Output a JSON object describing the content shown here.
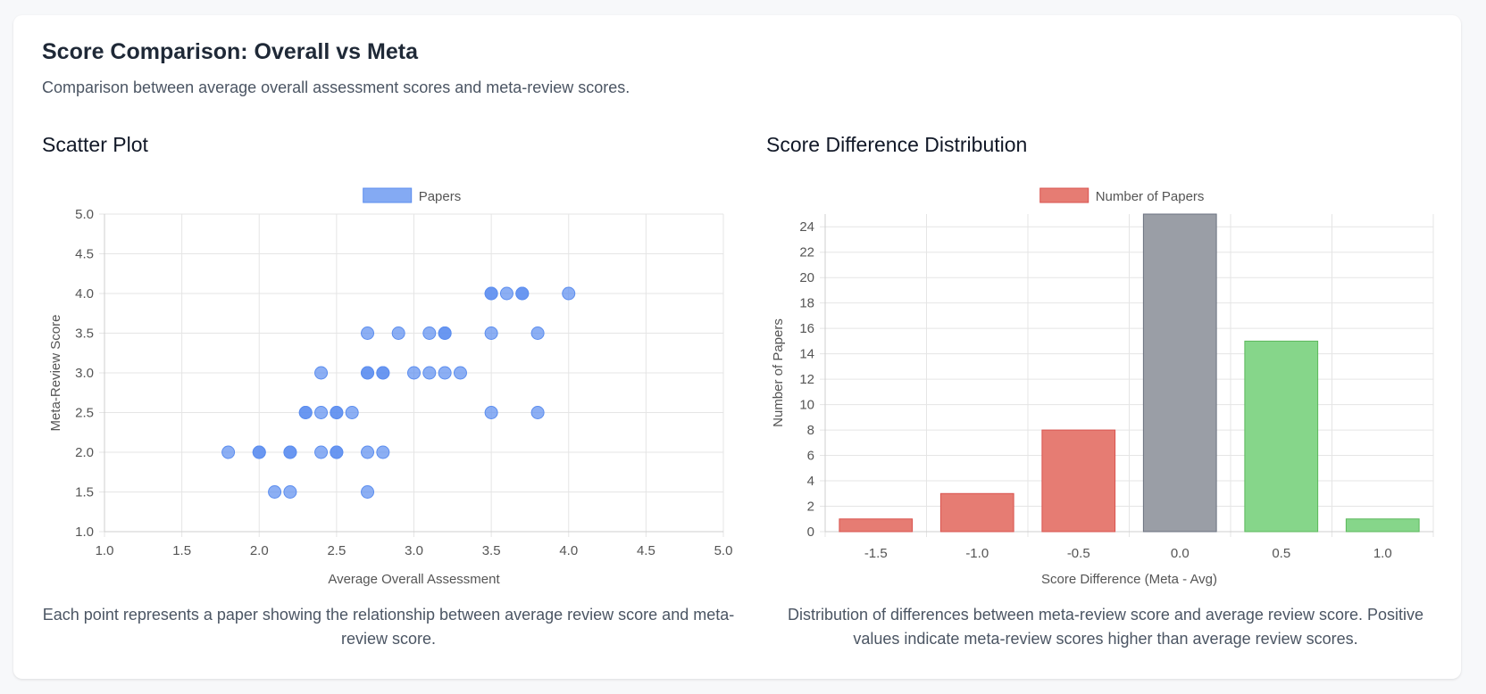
{
  "header": {
    "title": "Score Comparison: Overall vs Meta",
    "subtitle": "Comparison between average overall assessment scores and meta-review scores."
  },
  "scatter_panel": {
    "title": "Scatter Plot",
    "caption": "Each point represents a paper showing the relationship between average review score and meta-review score."
  },
  "bar_panel": {
    "title": "Score Difference Distribution",
    "caption": "Distribution of differences between meta-review score and average review score. Positive values indicate meta-review scores higher than average review scores."
  },
  "chart_data": [
    {
      "type": "scatter",
      "legend": [
        "Papers"
      ],
      "legend_position": "top",
      "xlabel": "Average Overall Assessment",
      "ylabel": "Meta-Review Score",
      "xlim": [
        1.0,
        5.0
      ],
      "ylim": [
        1.0,
        5.0
      ],
      "x_ticks": [
        "1.0",
        "1.5",
        "2.0",
        "2.5",
        "3.0",
        "3.5",
        "4.0",
        "4.5",
        "5.0"
      ],
      "y_ticks": [
        "1.0",
        "1.5",
        "2.0",
        "2.5",
        "3.0",
        "3.5",
        "4.0",
        "4.5",
        "5.0"
      ],
      "grid": true,
      "color": "#5b8def",
      "series": [
        {
          "name": "Papers",
          "points": [
            [
              1.8,
              2.0
            ],
            [
              2.0,
              2.0
            ],
            [
              2.0,
              2.0
            ],
            [
              2.2,
              2.0
            ],
            [
              2.2,
              2.0
            ],
            [
              2.4,
              2.0
            ],
            [
              2.5,
              2.0
            ],
            [
              2.5,
              2.0
            ],
            [
              2.7,
              2.0
            ],
            [
              2.8,
              2.0
            ],
            [
              2.1,
              1.5
            ],
            [
              2.2,
              1.5
            ],
            [
              2.7,
              1.5
            ],
            [
              2.3,
              2.5
            ],
            [
              2.3,
              2.5
            ],
            [
              2.4,
              2.5
            ],
            [
              2.5,
              2.5
            ],
            [
              2.5,
              2.5
            ],
            [
              2.6,
              2.5
            ],
            [
              3.5,
              2.5
            ],
            [
              3.8,
              2.5
            ],
            [
              2.4,
              3.0
            ],
            [
              2.7,
              3.0
            ],
            [
              2.7,
              3.0
            ],
            [
              2.8,
              3.0
            ],
            [
              2.8,
              3.0
            ],
            [
              3.0,
              3.0
            ],
            [
              3.1,
              3.0
            ],
            [
              3.2,
              3.0
            ],
            [
              3.3,
              3.0
            ],
            [
              2.7,
              3.5
            ],
            [
              2.9,
              3.5
            ],
            [
              3.1,
              3.5
            ],
            [
              3.2,
              3.5
            ],
            [
              3.2,
              3.5
            ],
            [
              3.5,
              3.5
            ],
            [
              3.8,
              3.5
            ],
            [
              3.5,
              4.0
            ],
            [
              3.5,
              4.0
            ],
            [
              3.6,
              4.0
            ],
            [
              3.7,
              4.0
            ],
            [
              3.7,
              4.0
            ],
            [
              4.0,
              4.0
            ]
          ]
        }
      ]
    },
    {
      "type": "bar",
      "legend": [
        "Number of Papers"
      ],
      "legend_position": "top",
      "xlabel": "Score Difference (Meta - Avg)",
      "ylabel": "Number of Papers",
      "categories": [
        "-1.5",
        "-1.0",
        "-0.5",
        "0.0",
        "0.5",
        "1.0"
      ],
      "values": [
        1,
        3,
        8,
        25,
        15,
        1
      ],
      "ylim": [
        0,
        25
      ],
      "y_ticks": [
        "0",
        "2",
        "4",
        "6",
        "8",
        "10",
        "12",
        "14",
        "16",
        "18",
        "20",
        "22",
        "24"
      ],
      "grid": true,
      "colors": {
        "negative_fill": "#e67c73",
        "negative_border": "#d9534f",
        "zero_fill": "#9a9ea6",
        "zero_border": "#6b7280",
        "positive_fill": "#86d68a",
        "positive_border": "#5cb85c"
      }
    }
  ]
}
